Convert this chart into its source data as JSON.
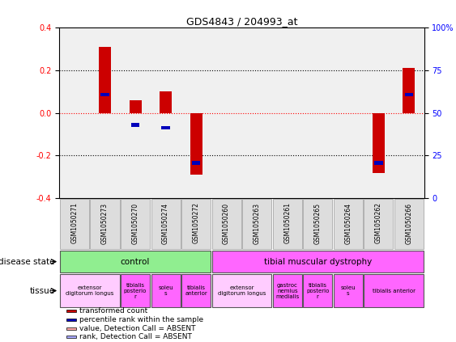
{
  "title": "GDS4843 / 204993_at",
  "samples": [
    "GSM1050271",
    "GSM1050273",
    "GSM1050270",
    "GSM1050274",
    "GSM1050272",
    "GSM1050260",
    "GSM1050263",
    "GSM1050261",
    "GSM1050265",
    "GSM1050264",
    "GSM1050262",
    "GSM1050266"
  ],
  "red_values": [
    0.0,
    0.31,
    0.06,
    0.1,
    -0.29,
    0.0,
    0.0,
    0.0,
    0.0,
    0.0,
    -0.28,
    0.21
  ],
  "blue_values": [
    null,
    0.085,
    -0.055,
    -0.07,
    -0.235,
    null,
    null,
    null,
    null,
    null,
    -0.235,
    0.085
  ],
  "ylim": [
    -0.4,
    0.4
  ],
  "yticks_left": [
    -0.4,
    -0.2,
    0.0,
    0.2,
    0.4
  ],
  "yticks_right": [
    0,
    25,
    50,
    75,
    100
  ],
  "disease_groups": [
    {
      "label": "control",
      "start": 0,
      "end": 5,
      "color": "#90EE90"
    },
    {
      "label": "tibial muscular dystrophy",
      "start": 5,
      "end": 12,
      "color": "#FF66FF"
    }
  ],
  "tissue_groups": [
    {
      "label": "extensor\ndigitorum longus",
      "start": 0,
      "end": 2,
      "color": "#FFCCFF"
    },
    {
      "label": "tibialis\nposterio\nr",
      "start": 2,
      "end": 3,
      "color": "#FF66FF"
    },
    {
      "label": "soleu\ns",
      "start": 3,
      "end": 4,
      "color": "#FF66FF"
    },
    {
      "label": "tibialis\nanterior",
      "start": 4,
      "end": 5,
      "color": "#FF66FF"
    },
    {
      "label": "extensor\ndigitorum longus",
      "start": 5,
      "end": 7,
      "color": "#FFCCFF"
    },
    {
      "label": "gastroc\nnemius\nmedialis",
      "start": 7,
      "end": 8,
      "color": "#FF66FF"
    },
    {
      "label": "tibialis\nposterio\nr",
      "start": 8,
      "end": 9,
      "color": "#FF66FF"
    },
    {
      "label": "soleu\ns",
      "start": 9,
      "end": 10,
      "color": "#FF66FF"
    },
    {
      "label": "tibialis anterior",
      "start": 10,
      "end": 12,
      "color": "#FF66FF"
    }
  ],
  "red_color": "#CC0000",
  "blue_color": "#0000BB",
  "bar_width": 0.4,
  "legend_items": [
    {
      "color": "#CC0000",
      "label": "transformed count"
    },
    {
      "color": "#0000BB",
      "label": "percentile rank within the sample"
    },
    {
      "color": "#FFAAAA",
      "label": "value, Detection Call = ABSENT"
    },
    {
      "color": "#AAAAFF",
      "label": "rank, Detection Call = ABSENT"
    }
  ]
}
